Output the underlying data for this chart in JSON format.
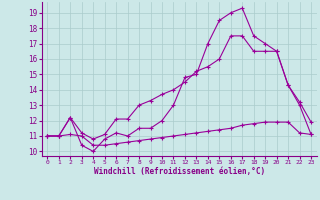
{
  "xlabel": "Windchill (Refroidissement éolien,°C)",
  "background_color": "#cce8e8",
  "grid_color": "#aacccc",
  "line_color": "#990099",
  "xlim": [
    -0.5,
    23.5
  ],
  "ylim": [
    9.7,
    19.7
  ],
  "xticks": [
    0,
    1,
    2,
    3,
    4,
    5,
    6,
    7,
    8,
    9,
    10,
    11,
    12,
    13,
    14,
    15,
    16,
    17,
    18,
    19,
    20,
    21,
    22,
    23
  ],
  "yticks": [
    10,
    11,
    12,
    13,
    14,
    15,
    16,
    17,
    18,
    19
  ],
  "line1_x": [
    0,
    1,
    2,
    3,
    4,
    5,
    6,
    7,
    8,
    9,
    10,
    11,
    12,
    13,
    14,
    15,
    16,
    17,
    18,
    19,
    20,
    21,
    22,
    23
  ],
  "line1_y": [
    11,
    11,
    12.2,
    10.4,
    10.0,
    10.8,
    11.2,
    11.0,
    11.5,
    11.5,
    12.0,
    13.0,
    14.8,
    15.0,
    17.0,
    18.5,
    19.0,
    19.3,
    17.5,
    17.0,
    16.5,
    14.3,
    13.2,
    11.9
  ],
  "line2_x": [
    0,
    1,
    2,
    3,
    4,
    5,
    6,
    7,
    8,
    9,
    10,
    11,
    12,
    13,
    14,
    15,
    16,
    17,
    18,
    19,
    20,
    21,
    22,
    23
  ],
  "line2_y": [
    11,
    11,
    12.2,
    11.2,
    10.8,
    11.1,
    12.1,
    12.1,
    13.0,
    13.3,
    13.7,
    14.0,
    14.5,
    15.2,
    15.5,
    16.0,
    17.5,
    17.5,
    16.5,
    16.5,
    16.5,
    14.3,
    13.0,
    11.1
  ],
  "line3_x": [
    0,
    1,
    2,
    3,
    4,
    5,
    6,
    7,
    8,
    9,
    10,
    11,
    12,
    13,
    14,
    15,
    16,
    17,
    18,
    19,
    20,
    21,
    22,
    23
  ],
  "line3_y": [
    11,
    11,
    11.1,
    11.0,
    10.4,
    10.4,
    10.5,
    10.6,
    10.7,
    10.8,
    10.9,
    11.0,
    11.1,
    11.2,
    11.3,
    11.4,
    11.5,
    11.7,
    11.8,
    11.9,
    11.9,
    11.9,
    11.2,
    11.1
  ]
}
